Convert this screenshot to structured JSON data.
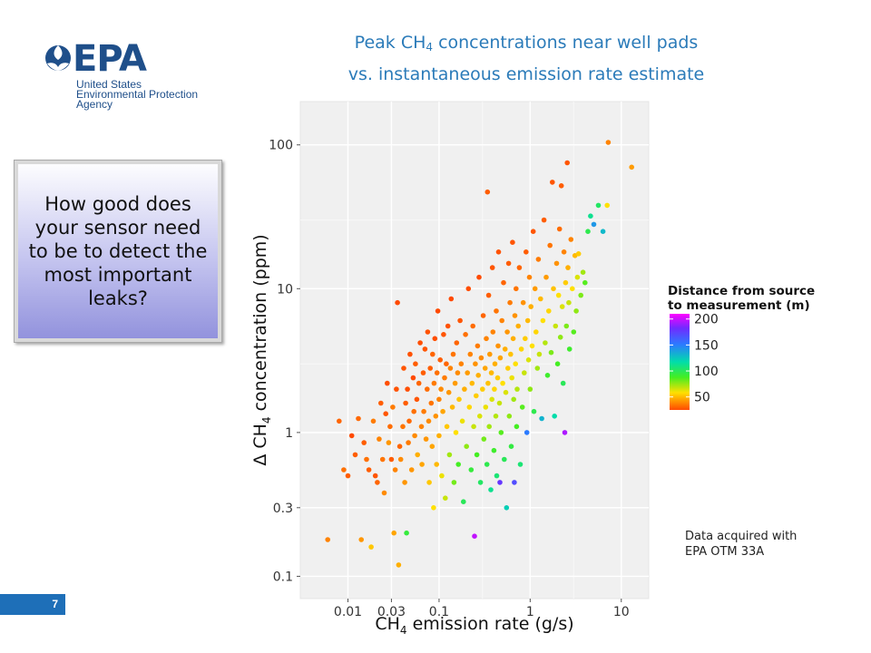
{
  "slide": {
    "title_line1_pre": "Peak CH",
    "title_sub": "4",
    "title_line1_post": " concentrations near well pads",
    "title_line2": "vs. instantaneous emission rate estimate",
    "callout": "How good does your sensor need to be to detect the most important leaks?",
    "note_line1": "Data acquired with",
    "note_line2": "EPA OTM 33A",
    "page_number": "7"
  },
  "logo": {
    "name": "EPA",
    "org_line1": "United States",
    "org_line2": "Environmental Protection",
    "org_line3": "Agency",
    "color": "#1f4f8a"
  },
  "chart_data": {
    "type": "scatter",
    "x_scale": "log",
    "y_scale": "log",
    "xlabel_pre": "CH",
    "xlabel_sub": "4",
    "xlabel_post": " emission rate (g/s)",
    "ylabel_pre": "Δ CH",
    "ylabel_sub": "4",
    "ylabel_post": " concentration (ppm)",
    "xlim": [
      0.003,
      20
    ],
    "ylim": [
      0.07,
      200
    ],
    "x_ticks": [
      0.01,
      0.03,
      0.1,
      1,
      10
    ],
    "x_tick_labels": [
      "0.01",
      "0.03",
      "0.1",
      "1",
      "10"
    ],
    "y_ticks": [
      0.1,
      0.3,
      1,
      10,
      100
    ],
    "y_tick_labels": [
      "0.1",
      "0.3",
      "1",
      "10",
      "100"
    ],
    "grid": true,
    "legend": {
      "title_line1": "Distance from source",
      "title_line2": "to measurement (m)",
      "ticks": [
        200,
        150,
        100,
        50
      ],
      "tick_labels": [
        "200",
        "150",
        "100",
        "50"
      ],
      "range": [
        25,
        210
      ],
      "placement": "right"
    },
    "points": [
      {
        "x": 0.006,
        "y": 0.18,
        "d": 40
      },
      {
        "x": 0.008,
        "y": 1.2,
        "d": 32
      },
      {
        "x": 0.009,
        "y": 0.55,
        "d": 35
      },
      {
        "x": 0.01,
        "y": 0.5,
        "d": 30
      },
      {
        "x": 0.011,
        "y": 0.95,
        "d": 25
      },
      {
        "x": 0.012,
        "y": 0.7,
        "d": 30
      },
      {
        "x": 0.013,
        "y": 1.25,
        "d": 33
      },
      {
        "x": 0.014,
        "y": 0.18,
        "d": 45
      },
      {
        "x": 0.015,
        "y": 0.85,
        "d": 30
      },
      {
        "x": 0.016,
        "y": 0.65,
        "d": 35
      },
      {
        "x": 0.017,
        "y": 0.55,
        "d": 30
      },
      {
        "x": 0.018,
        "y": 0.16,
        "d": 55
      },
      {
        "x": 0.019,
        "y": 1.2,
        "d": 38
      },
      {
        "x": 0.02,
        "y": 0.5,
        "d": 28
      },
      {
        "x": 0.021,
        "y": 0.45,
        "d": 32
      },
      {
        "x": 0.022,
        "y": 0.9,
        "d": 40
      },
      {
        "x": 0.023,
        "y": 1.6,
        "d": 30
      },
      {
        "x": 0.024,
        "y": 0.65,
        "d": 36
      },
      {
        "x": 0.025,
        "y": 0.38,
        "d": 42
      },
      {
        "x": 0.026,
        "y": 1.35,
        "d": 28
      },
      {
        "x": 0.027,
        "y": 2.2,
        "d": 26
      },
      {
        "x": 0.028,
        "y": 0.85,
        "d": 45
      },
      {
        "x": 0.029,
        "y": 1.1,
        "d": 34
      },
      {
        "x": 0.03,
        "y": 0.65,
        "d": 30
      },
      {
        "x": 0.031,
        "y": 1.5,
        "d": 38
      },
      {
        "x": 0.032,
        "y": 0.2,
        "d": 48
      },
      {
        "x": 0.033,
        "y": 0.55,
        "d": 40
      },
      {
        "x": 0.034,
        "y": 2.0,
        "d": 27
      },
      {
        "x": 0.035,
        "y": 8.0,
        "d": 25
      },
      {
        "x": 0.036,
        "y": 0.12,
        "d": 50
      },
      {
        "x": 0.037,
        "y": 0.8,
        "d": 32
      },
      {
        "x": 0.038,
        "y": 0.65,
        "d": 42
      },
      {
        "x": 0.04,
        "y": 1.1,
        "d": 36
      },
      {
        "x": 0.041,
        "y": 2.8,
        "d": 28
      },
      {
        "x": 0.042,
        "y": 0.45,
        "d": 45
      },
      {
        "x": 0.043,
        "y": 1.6,
        "d": 30
      },
      {
        "x": 0.044,
        "y": 0.2,
        "d": 85
      },
      {
        "x": 0.045,
        "y": 2.0,
        "d": 26
      },
      {
        "x": 0.046,
        "y": 0.85,
        "d": 38
      },
      {
        "x": 0.047,
        "y": 1.2,
        "d": 33
      },
      {
        "x": 0.048,
        "y": 3.5,
        "d": 27
      },
      {
        "x": 0.05,
        "y": 0.55,
        "d": 45
      },
      {
        "x": 0.052,
        "y": 2.4,
        "d": 25
      },
      {
        "x": 0.053,
        "y": 1.4,
        "d": 35
      },
      {
        "x": 0.054,
        "y": 0.95,
        "d": 42
      },
      {
        "x": 0.055,
        "y": 3.0,
        "d": 30
      },
      {
        "x": 0.057,
        "y": 1.7,
        "d": 28
      },
      {
        "x": 0.058,
        "y": 0.7,
        "d": 50
      },
      {
        "x": 0.06,
        "y": 2.2,
        "d": 32
      },
      {
        "x": 0.062,
        "y": 4.2,
        "d": 26
      },
      {
        "x": 0.064,
        "y": 1.1,
        "d": 40
      },
      {
        "x": 0.065,
        "y": 0.6,
        "d": 48
      },
      {
        "x": 0.067,
        "y": 2.6,
        "d": 30
      },
      {
        "x": 0.068,
        "y": 1.4,
        "d": 38
      },
      {
        "x": 0.07,
        "y": 3.8,
        "d": 28
      },
      {
        "x": 0.072,
        "y": 0.9,
        "d": 45
      },
      {
        "x": 0.074,
        "y": 2.0,
        "d": 34
      },
      {
        "x": 0.075,
        "y": 5.0,
        "d": 27
      },
      {
        "x": 0.077,
        "y": 1.2,
        "d": 42
      },
      {
        "x": 0.078,
        "y": 0.45,
        "d": 55
      },
      {
        "x": 0.08,
        "y": 2.8,
        "d": 30
      },
      {
        "x": 0.082,
        "y": 1.6,
        "d": 36
      },
      {
        "x": 0.084,
        "y": 0.8,
        "d": 48
      },
      {
        "x": 0.085,
        "y": 3.5,
        "d": 32
      },
      {
        "x": 0.087,
        "y": 0.3,
        "d": 60
      },
      {
        "x": 0.088,
        "y": 2.2,
        "d": 38
      },
      {
        "x": 0.09,
        "y": 4.5,
        "d": 26
      },
      {
        "x": 0.092,
        "y": 1.3,
        "d": 44
      },
      {
        "x": 0.094,
        "y": 0.6,
        "d": 52
      },
      {
        "x": 0.095,
        "y": 2.6,
        "d": 35
      },
      {
        "x": 0.097,
        "y": 7.0,
        "d": 24
      },
      {
        "x": 0.1,
        "y": 1.7,
        "d": 40
      },
      {
        "x": 0.1,
        "y": 0.95,
        "d": 50
      },
      {
        "x": 0.103,
        "y": 3.2,
        "d": 30
      },
      {
        "x": 0.105,
        "y": 2.0,
        "d": 42
      },
      {
        "x": 0.107,
        "y": 0.5,
        "d": 62
      },
      {
        "x": 0.11,
        "y": 1.4,
        "d": 48
      },
      {
        "x": 0.112,
        "y": 4.8,
        "d": 28
      },
      {
        "x": 0.115,
        "y": 2.4,
        "d": 38
      },
      {
        "x": 0.117,
        "y": 0.35,
        "d": 66
      },
      {
        "x": 0.12,
        "y": 3.0,
        "d": 32
      },
      {
        "x": 0.122,
        "y": 1.1,
        "d": 55
      },
      {
        "x": 0.125,
        "y": 5.5,
        "d": 27
      },
      {
        "x": 0.128,
        "y": 1.9,
        "d": 45
      },
      {
        "x": 0.13,
        "y": 0.7,
        "d": 70
      },
      {
        "x": 0.133,
        "y": 2.8,
        "d": 40
      },
      {
        "x": 0.136,
        "y": 8.5,
        "d": 25
      },
      {
        "x": 0.14,
        "y": 1.5,
        "d": 52
      },
      {
        "x": 0.143,
        "y": 3.5,
        "d": 36
      },
      {
        "x": 0.146,
        "y": 0.45,
        "d": 75
      },
      {
        "x": 0.15,
        "y": 2.2,
        "d": 46
      },
      {
        "x": 0.153,
        "y": 1.0,
        "d": 60
      },
      {
        "x": 0.156,
        "y": 4.2,
        "d": 32
      },
      {
        "x": 0.16,
        "y": 2.6,
        "d": 42
      },
      {
        "x": 0.163,
        "y": 0.6,
        "d": 80
      },
      {
        "x": 0.166,
        "y": 1.7,
        "d": 55
      },
      {
        "x": 0.17,
        "y": 6.0,
        "d": 28
      },
      {
        "x": 0.175,
        "y": 3.0,
        "d": 40
      },
      {
        "x": 0.18,
        "y": 1.2,
        "d": 62
      },
      {
        "x": 0.185,
        "y": 0.33,
        "d": 90
      },
      {
        "x": 0.19,
        "y": 2.0,
        "d": 50
      },
      {
        "x": 0.195,
        "y": 4.8,
        "d": 35
      },
      {
        "x": 0.2,
        "y": 0.8,
        "d": 72
      },
      {
        "x": 0.205,
        "y": 2.6,
        "d": 46
      },
      {
        "x": 0.21,
        "y": 10.0,
        "d": 26
      },
      {
        "x": 0.215,
        "y": 1.5,
        "d": 58
      },
      {
        "x": 0.22,
        "y": 3.5,
        "d": 40
      },
      {
        "x": 0.225,
        "y": 0.55,
        "d": 85
      },
      {
        "x": 0.23,
        "y": 2.2,
        "d": 52
      },
      {
        "x": 0.235,
        "y": 5.5,
        "d": 34
      },
      {
        "x": 0.24,
        "y": 1.1,
        "d": 66
      },
      {
        "x": 0.245,
        "y": 0.19,
        "d": 195
      },
      {
        "x": 0.25,
        "y": 3.0,
        "d": 44
      },
      {
        "x": 0.255,
        "y": 1.8,
        "d": 56
      },
      {
        "x": 0.26,
        "y": 0.7,
        "d": 80
      },
      {
        "x": 0.265,
        "y": 4.0,
        "d": 38
      },
      {
        "x": 0.27,
        "y": 2.5,
        "d": 50
      },
      {
        "x": 0.275,
        "y": 12.0,
        "d": 25
      },
      {
        "x": 0.28,
        "y": 1.3,
        "d": 64
      },
      {
        "x": 0.285,
        "y": 0.45,
        "d": 92
      },
      {
        "x": 0.29,
        "y": 3.3,
        "d": 42
      },
      {
        "x": 0.3,
        "y": 2.0,
        "d": 56
      },
      {
        "x": 0.305,
        "y": 6.5,
        "d": 32
      },
      {
        "x": 0.31,
        "y": 0.9,
        "d": 75
      },
      {
        "x": 0.32,
        "y": 2.8,
        "d": 48
      },
      {
        "x": 0.325,
        "y": 1.5,
        "d": 62
      },
      {
        "x": 0.33,
        "y": 4.5,
        "d": 40
      },
      {
        "x": 0.335,
        "y": 0.6,
        "d": 88
      },
      {
        "x": 0.34,
        "y": 47.0,
        "d": 30
      },
      {
        "x": 0.345,
        "y": 2.2,
        "d": 54
      },
      {
        "x": 0.35,
        "y": 9.0,
        "d": 30
      },
      {
        "x": 0.355,
        "y": 1.1,
        "d": 70
      },
      {
        "x": 0.36,
        "y": 3.5,
        "d": 46
      },
      {
        "x": 0.37,
        "y": 0.4,
        "d": 100
      },
      {
        "x": 0.375,
        "y": 2.6,
        "d": 52
      },
      {
        "x": 0.38,
        "y": 1.7,
        "d": 64
      },
      {
        "x": 0.385,
        "y": 14.0,
        "d": 28
      },
      {
        "x": 0.39,
        "y": 5.0,
        "d": 40
      },
      {
        "x": 0.4,
        "y": 0.75,
        "d": 82
      },
      {
        "x": 0.405,
        "y": 2.0,
        "d": 58
      },
      {
        "x": 0.41,
        "y": 3.0,
        "d": 50
      },
      {
        "x": 0.42,
        "y": 1.3,
        "d": 68
      },
      {
        "x": 0.425,
        "y": 7.0,
        "d": 36
      },
      {
        "x": 0.43,
        "y": 0.5,
        "d": 95
      },
      {
        "x": 0.44,
        "y": 2.4,
        "d": 56
      },
      {
        "x": 0.445,
        "y": 4.0,
        "d": 44
      },
      {
        "x": 0.45,
        "y": 18.0,
        "d": 27
      },
      {
        "x": 0.46,
        "y": 1.6,
        "d": 66
      },
      {
        "x": 0.465,
        "y": 0.45,
        "d": 170
      },
      {
        "x": 0.47,
        "y": 3.3,
        "d": 48
      },
      {
        "x": 0.48,
        "y": 1.0,
        "d": 78
      },
      {
        "x": 0.49,
        "y": 6.0,
        "d": 40
      },
      {
        "x": 0.5,
        "y": 2.2,
        "d": 60
      },
      {
        "x": 0.51,
        "y": 11.0,
        "d": 32
      },
      {
        "x": 0.52,
        "y": 0.65,
        "d": 90
      },
      {
        "x": 0.53,
        "y": 3.8,
        "d": 50
      },
      {
        "x": 0.54,
        "y": 1.9,
        "d": 64
      },
      {
        "x": 0.55,
        "y": 0.3,
        "d": 110
      },
      {
        "x": 0.56,
        "y": 5.0,
        "d": 45
      },
      {
        "x": 0.57,
        "y": 2.8,
        "d": 56
      },
      {
        "x": 0.58,
        "y": 15.0,
        "d": 30
      },
      {
        "x": 0.59,
        "y": 1.3,
        "d": 72
      },
      {
        "x": 0.6,
        "y": 8.0,
        "d": 38
      },
      {
        "x": 0.61,
        "y": 3.5,
        "d": 54
      },
      {
        "x": 0.62,
        "y": 0.8,
        "d": 86
      },
      {
        "x": 0.63,
        "y": 2.4,
        "d": 62
      },
      {
        "x": 0.64,
        "y": 21.0,
        "d": 28
      },
      {
        "x": 0.65,
        "y": 4.5,
        "d": 50
      },
      {
        "x": 0.66,
        "y": 1.7,
        "d": 70
      },
      {
        "x": 0.67,
        "y": 0.45,
        "d": 160
      },
      {
        "x": 0.68,
        "y": 6.5,
        "d": 44
      },
      {
        "x": 0.69,
        "y": 3.0,
        "d": 60
      },
      {
        "x": 0.7,
        "y": 10.0,
        "d": 36
      },
      {
        "x": 0.71,
        "y": 1.1,
        "d": 80
      },
      {
        "x": 0.72,
        "y": 2.0,
        "d": 68
      },
      {
        "x": 0.74,
        "y": 5.5,
        "d": 50
      },
      {
        "x": 0.76,
        "y": 14.0,
        "d": 32
      },
      {
        "x": 0.78,
        "y": 0.6,
        "d": 95
      },
      {
        "x": 0.8,
        "y": 3.8,
        "d": 58
      },
      {
        "x": 0.82,
        "y": 1.5,
        "d": 78
      },
      {
        "x": 0.84,
        "y": 8.0,
        "d": 44
      },
      {
        "x": 0.86,
        "y": 2.6,
        "d": 66
      },
      {
        "x": 0.88,
        "y": 4.5,
        "d": 56
      },
      {
        "x": 0.9,
        "y": 18.0,
        "d": 30
      },
      {
        "x": 0.92,
        "y": 1.0,
        "d": 140
      },
      {
        "x": 0.94,
        "y": 6.0,
        "d": 52
      },
      {
        "x": 0.96,
        "y": 3.2,
        "d": 64
      },
      {
        "x": 0.98,
        "y": 12.0,
        "d": 40
      },
      {
        "x": 1.0,
        "y": 2.0,
        "d": 72
      },
      {
        "x": 1.02,
        "y": 7.5,
        "d": 50
      },
      {
        "x": 1.05,
        "y": 4.0,
        "d": 60
      },
      {
        "x": 1.08,
        "y": 25.0,
        "d": 28
      },
      {
        "x": 1.1,
        "y": 1.4,
        "d": 88
      },
      {
        "x": 1.13,
        "y": 10.0,
        "d": 46
      },
      {
        "x": 1.16,
        "y": 5.0,
        "d": 58
      },
      {
        "x": 1.2,
        "y": 2.8,
        "d": 70
      },
      {
        "x": 1.23,
        "y": 16.0,
        "d": 38
      },
      {
        "x": 1.26,
        "y": 3.5,
        "d": 66
      },
      {
        "x": 1.3,
        "y": 8.5,
        "d": 52
      },
      {
        "x": 1.34,
        "y": 1.25,
        "d": 120
      },
      {
        "x": 1.38,
        "y": 6.0,
        "d": 60
      },
      {
        "x": 1.42,
        "y": 30.0,
        "d": 30
      },
      {
        "x": 1.46,
        "y": 4.2,
        "d": 68
      },
      {
        "x": 1.5,
        "y": 12.0,
        "d": 46
      },
      {
        "x": 1.55,
        "y": 2.5,
        "d": 82
      },
      {
        "x": 1.6,
        "y": 7.0,
        "d": 58
      },
      {
        "x": 1.65,
        "y": 20.0,
        "d": 36
      },
      {
        "x": 1.7,
        "y": 3.6,
        "d": 74
      },
      {
        "x": 1.75,
        "y": 55.0,
        "d": 28
      },
      {
        "x": 1.8,
        "y": 10.0,
        "d": 54
      },
      {
        "x": 1.85,
        "y": 1.3,
        "d": 105
      },
      {
        "x": 1.9,
        "y": 5.5,
        "d": 66
      },
      {
        "x": 1.95,
        "y": 15.0,
        "d": 44
      },
      {
        "x": 2.0,
        "y": 3.0,
        "d": 80
      },
      {
        "x": 2.05,
        "y": 9.0,
        "d": 60
      },
      {
        "x": 2.1,
        "y": 26.0,
        "d": 34
      },
      {
        "x": 2.15,
        "y": 4.6,
        "d": 72
      },
      {
        "x": 2.2,
        "y": 52.0,
        "d": 30
      },
      {
        "x": 2.25,
        "y": 7.5,
        "d": 64
      },
      {
        "x": 2.3,
        "y": 2.2,
        "d": 90
      },
      {
        "x": 2.35,
        "y": 18.0,
        "d": 40
      },
      {
        "x": 2.4,
        "y": 1.0,
        "d": 190
      },
      {
        "x": 2.45,
        "y": 11.0,
        "d": 56
      },
      {
        "x": 2.5,
        "y": 5.5,
        "d": 74
      },
      {
        "x": 2.55,
        "y": 75.0,
        "d": 28
      },
      {
        "x": 2.6,
        "y": 14.0,
        "d": 50
      },
      {
        "x": 2.65,
        "y": 8.0,
        "d": 66
      },
      {
        "x": 2.7,
        "y": 3.8,
        "d": 82
      },
      {
        "x": 2.8,
        "y": 22.0,
        "d": 40
      },
      {
        "x": 2.9,
        "y": 10.0,
        "d": 60
      },
      {
        "x": 3.0,
        "y": 5.0,
        "d": 78
      },
      {
        "x": 3.1,
        "y": 17.0,
        "d": 52
      },
      {
        "x": 3.2,
        "y": 7.0,
        "d": 72
      },
      {
        "x": 3.3,
        "y": 12.0,
        "d": 64
      },
      {
        "x": 3.4,
        "y": 17.5,
        "d": 56
      },
      {
        "x": 3.6,
        "y": 9.0,
        "d": 74
      },
      {
        "x": 3.8,
        "y": 13.0,
        "d": 70
      },
      {
        "x": 4.0,
        "y": 11.0,
        "d": 78
      },
      {
        "x": 4.3,
        "y": 25.0,
        "d": 88
      },
      {
        "x": 4.6,
        "y": 32.0,
        "d": 100
      },
      {
        "x": 5.0,
        "y": 28.0,
        "d": 130
      },
      {
        "x": 5.6,
        "y": 38.0,
        "d": 92
      },
      {
        "x": 6.3,
        "y": 25.0,
        "d": 118
      },
      {
        "x": 7.2,
        "y": 104.0,
        "d": 40
      },
      {
        "x": 7.0,
        "y": 38.0,
        "d": 60
      },
      {
        "x": 13.0,
        "y": 70.0,
        "d": 46
      }
    ]
  }
}
